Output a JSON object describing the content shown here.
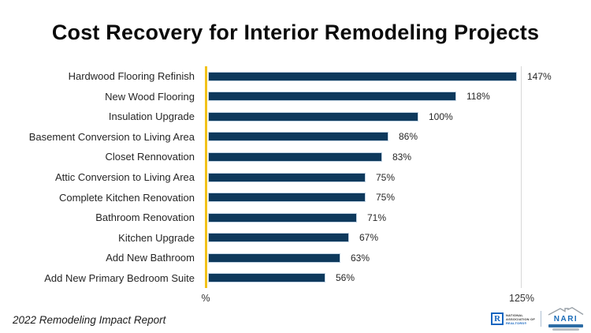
{
  "title": "Cost Recovery for Interior Remodeling Projects",
  "chart_data": {
    "type": "bar",
    "orientation": "horizontal",
    "title": "Cost Recovery for Interior Remodeling Projects",
    "categories": [
      "Hardwood Flooring Refinish",
      "New Wood Flooring",
      "Insulation Upgrade",
      "Basement Conversion to Living Area",
      "Closet Rennovation",
      "Attic  Conversion to Living Area",
      "Complete Kitchen Renovation",
      "Bathroom Renovation",
      "Kitchen Upgrade",
      "Add New Bathroom",
      "Add New Primary Bedroom Suite"
    ],
    "values": [
      147,
      118,
      100,
      86,
      83,
      75,
      75,
      71,
      67,
      63,
      56
    ],
    "value_labels": [
      "147%",
      "118%",
      "100%",
      "86%",
      "83%",
      "75%",
      "75%",
      "71%",
      "67%",
      "63%",
      "56%"
    ],
    "xlabel_left": "%",
    "xlabel_right": "125%",
    "xlim": [
      0,
      150
    ],
    "legend_position": "none",
    "grid": "single right vertical gridline",
    "bar_color": "#0e395c",
    "bar_border_color": "#c2d4e4",
    "axis_line_color": "#f2c21a",
    "gridline_color": "#d8d8d8"
  },
  "footer": {
    "source_text": "2022 Remodeling Impact Report",
    "nar_logo": {
      "letter": "R",
      "lines": [
        "NATIONAL",
        "ASSOCIATION OF",
        "REALTORS®"
      ],
      "brand_color": "#1565c0"
    },
    "nari_logo": {
      "name": "NARI",
      "brand_color": "#1b6cb8"
    }
  }
}
